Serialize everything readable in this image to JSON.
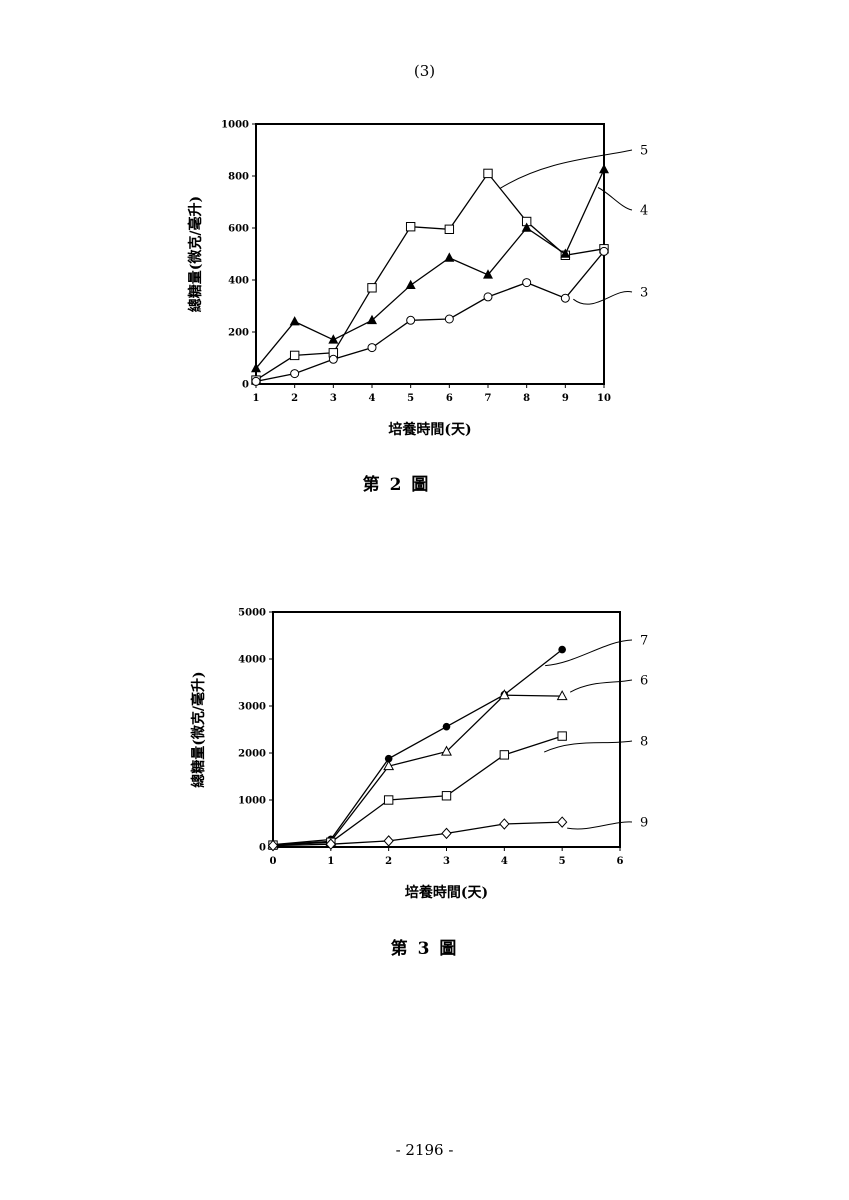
{
  "page": {
    "header": "(3)",
    "footer": "- 2196 -"
  },
  "chart_data": [
    {
      "type": "line",
      "caption": "第 2 圖",
      "xlabel": "培養時間(天)",
      "ylabel": "總糖量(微克/毫升)",
      "x": [
        1,
        2,
        3,
        4,
        5,
        6,
        7,
        8,
        9,
        10
      ],
      "xticks": [
        "1",
        "2",
        "3",
        "4",
        "5",
        "6",
        "7",
        "8",
        "9",
        "10"
      ],
      "xlim": [
        1,
        10
      ],
      "ylim": [
        0,
        1000
      ],
      "yticks": [
        "0",
        "200",
        "400",
        "600",
        "800",
        "1000"
      ],
      "ytick_values": [
        0,
        200,
        400,
        600,
        800,
        1000
      ],
      "grid": false,
      "series": [
        {
          "name": "5",
          "marker": "open-square",
          "values": [
            15,
            110,
            120,
            370,
            605,
            595,
            810,
            625,
            495,
            520
          ]
        },
        {
          "name": "4",
          "marker": "filled-triangle",
          "values": [
            60,
            240,
            170,
            245,
            380,
            485,
            420,
            600,
            500,
            825
          ]
        },
        {
          "name": "3",
          "marker": "open-circle",
          "values": [
            10,
            40,
            95,
            140,
            245,
            250,
            335,
            390,
            330,
            510
          ]
        }
      ]
    },
    {
      "type": "line",
      "caption": "第 3 圖",
      "xlabel": "培養時間(天)",
      "ylabel": "總糖量(微克/毫升)",
      "x": [
        0,
        1,
        2,
        3,
        4,
        5
      ],
      "xticks": [
        "0",
        "1",
        "2",
        "3",
        "4",
        "5",
        "6"
      ],
      "xtick_values": [
        0,
        1,
        2,
        3,
        4,
        5,
        6
      ],
      "xlim": [
        0,
        6
      ],
      "ylim": [
        0,
        5000
      ],
      "yticks": [
        "0",
        "1000",
        "2000",
        "3000",
        "4000",
        "5000"
      ],
      "ytick_values": [
        0,
        1000,
        2000,
        3000,
        4000,
        5000
      ],
      "grid": false,
      "series": [
        {
          "name": "7",
          "marker": "filled-circle",
          "values": [
            50,
            160,
            1880,
            2560,
            3240,
            4200
          ]
        },
        {
          "name": "6",
          "marker": "open-triangle",
          "values": [
            50,
            120,
            1720,
            2030,
            3230,
            3210
          ]
        },
        {
          "name": "8",
          "marker": "open-square",
          "values": [
            40,
            100,
            1000,
            1090,
            1960,
            2360
          ]
        },
        {
          "name": "9",
          "marker": "open-diamond",
          "values": [
            30,
            60,
            130,
            290,
            490,
            530
          ]
        }
      ]
    }
  ]
}
